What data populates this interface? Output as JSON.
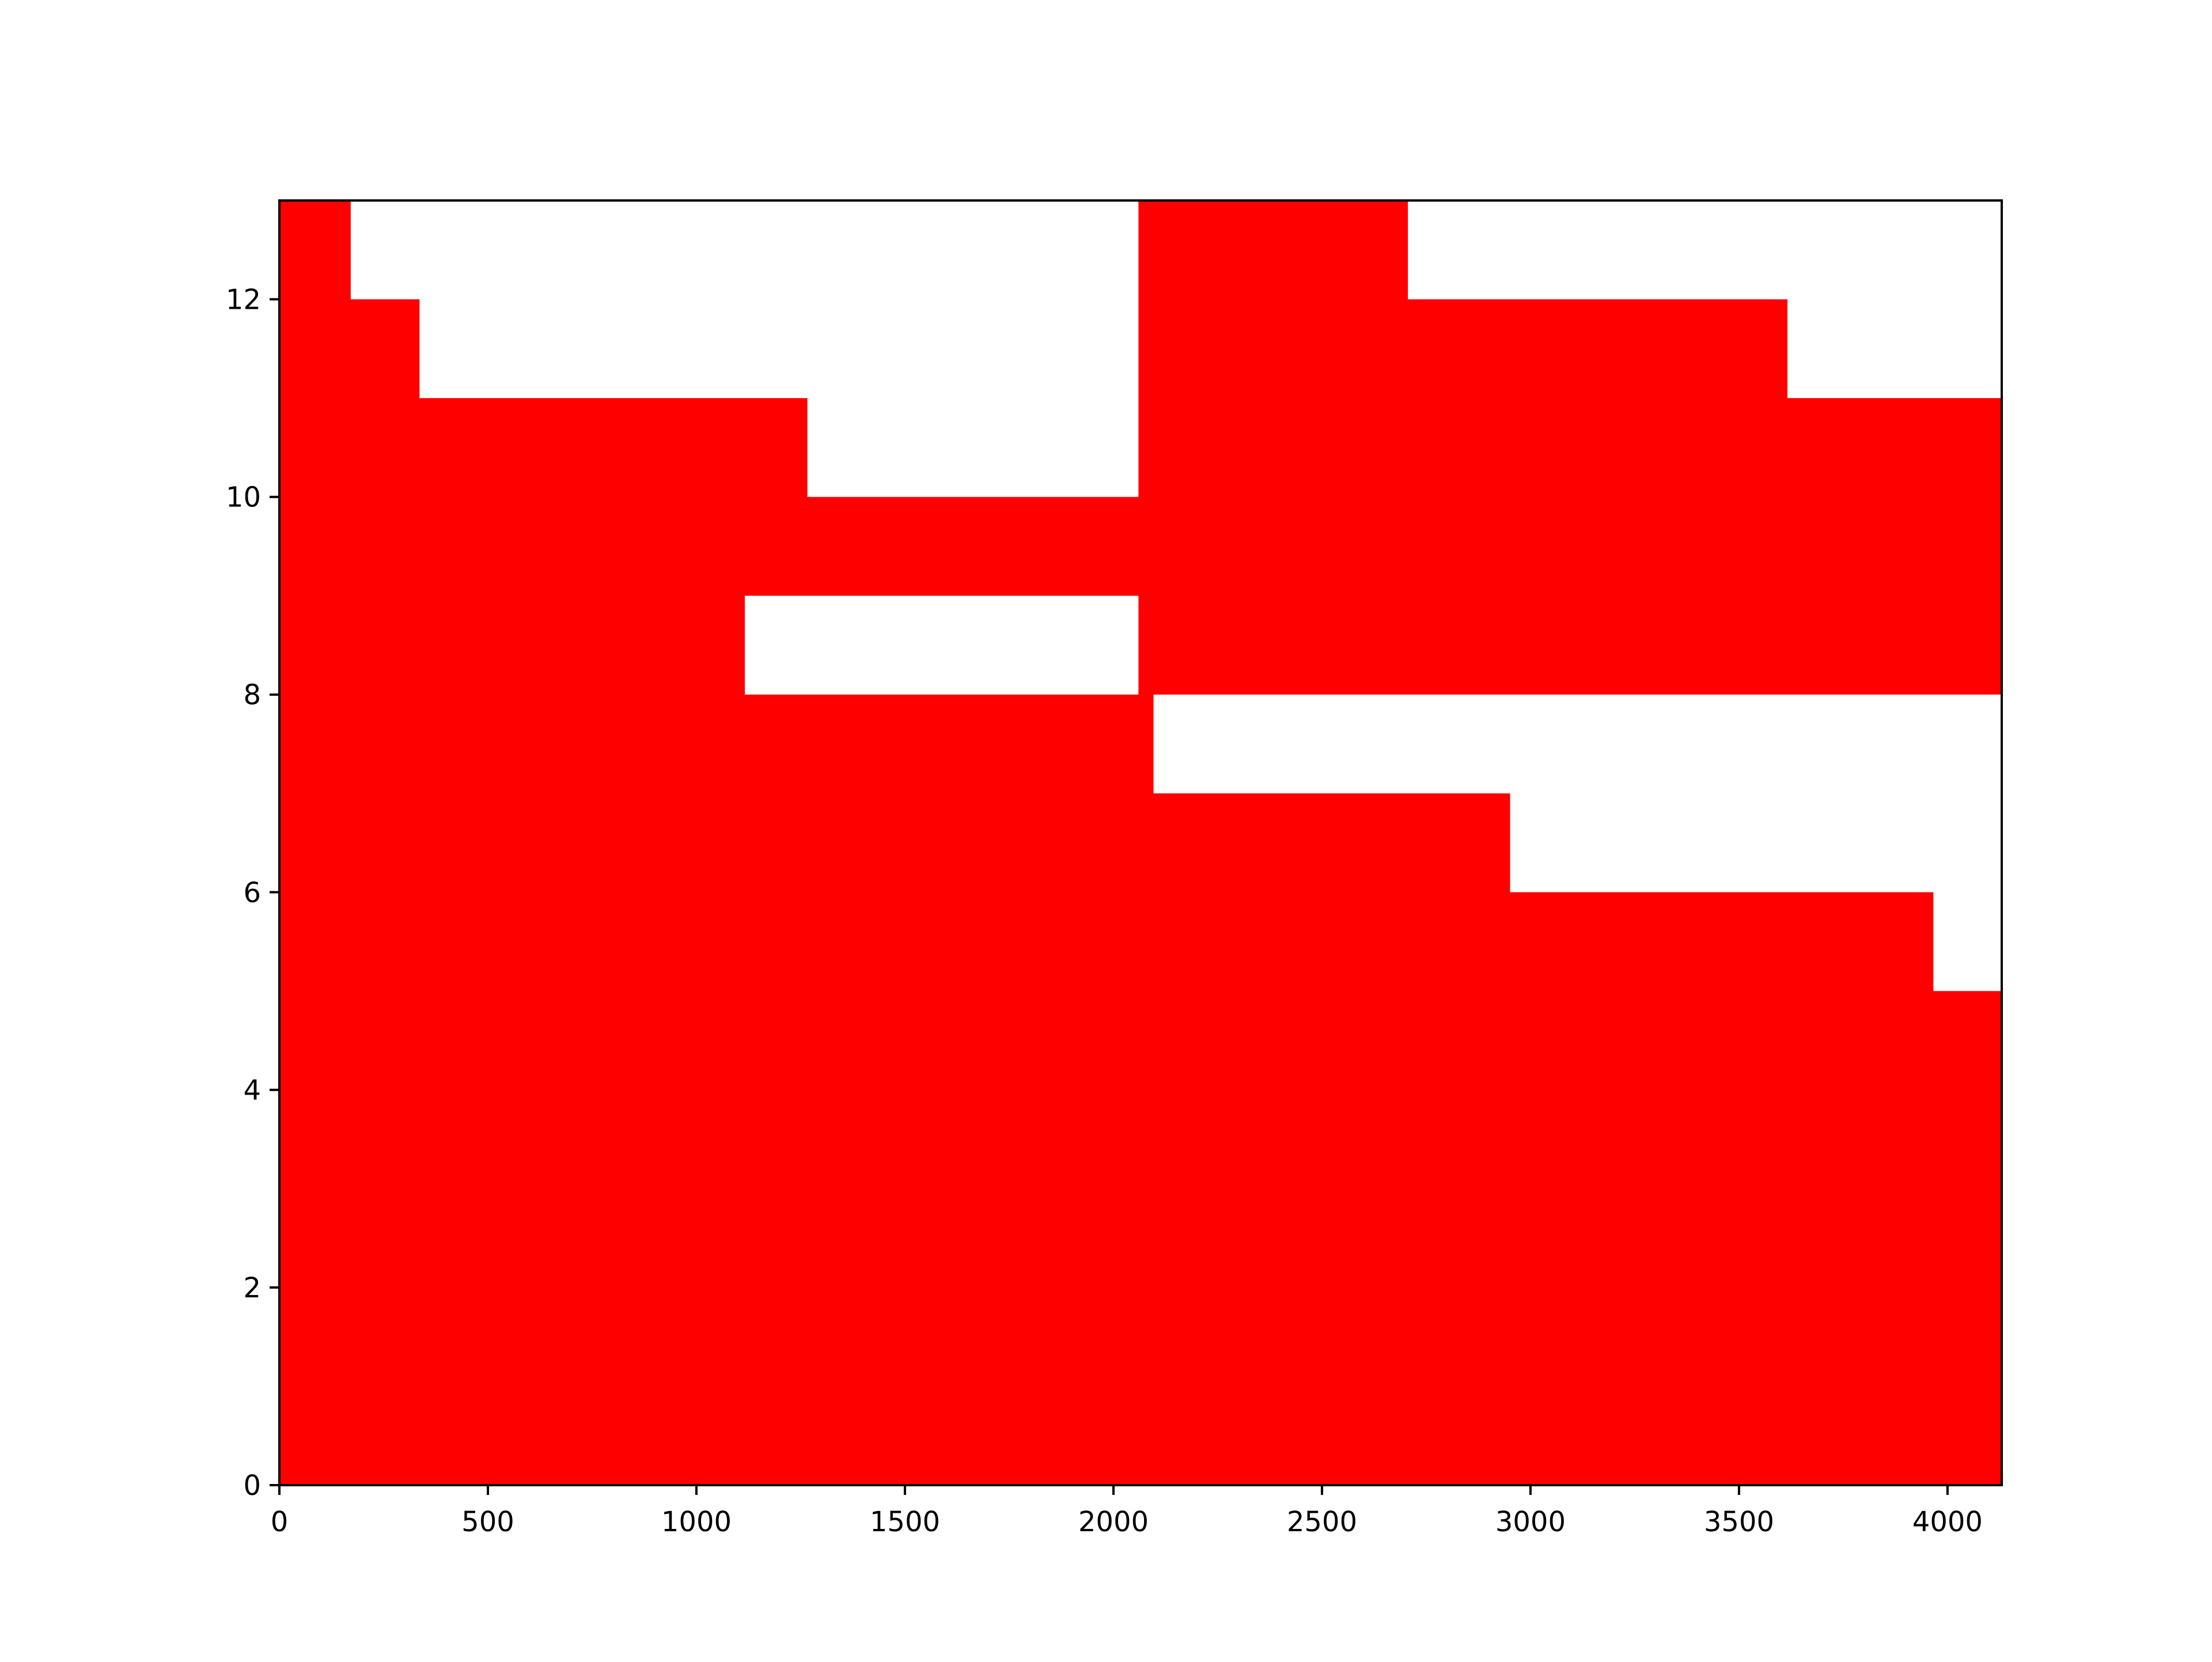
{
  "chart_data": {
    "type": "area",
    "title": "",
    "xlabel": "",
    "ylabel": "",
    "xlim": [
      0,
      4130
    ],
    "ylim": [
      0,
      13
    ],
    "grid": false,
    "fill_color": "#ff0000",
    "background_color": "#ffffff",
    "axis_color": "#000000",
    "x_ticks": [
      {
        "value": 0,
        "label": "0"
      },
      {
        "value": 500,
        "label": "500"
      },
      {
        "value": 1000,
        "label": "1000"
      },
      {
        "value": 1500,
        "label": "1500"
      },
      {
        "value": 2000,
        "label": "2000"
      },
      {
        "value": 2500,
        "label": "2500"
      },
      {
        "value": 3000,
        "label": "3000"
      },
      {
        "value": 3500,
        "label": "3500"
      },
      {
        "value": 4000,
        "label": "4000"
      }
    ],
    "y_ticks": [
      {
        "value": 0,
        "label": "0"
      },
      {
        "value": 2,
        "label": "2"
      },
      {
        "value": 4,
        "label": "4"
      },
      {
        "value": 6,
        "label": "6"
      },
      {
        "value": 8,
        "label": "8"
      },
      {
        "value": 10,
        "label": "10"
      },
      {
        "value": 12,
        "label": "12"
      }
    ],
    "regions": [
      {
        "x_start": 0,
        "x_end": 170,
        "y_min": 0,
        "y_max": 13
      },
      {
        "x_start": 170,
        "x_end": 335,
        "y_min": 0,
        "y_max": 12
      },
      {
        "x_start": 335,
        "x_end": 1115,
        "y_min": 0,
        "y_max": 11
      },
      {
        "x_start": 1115,
        "x_end": 1265,
        "y_min": 0,
        "y_max": 8
      },
      {
        "x_start": 1115,
        "x_end": 1265,
        "y_min": 9,
        "y_max": 11
      },
      {
        "x_start": 1265,
        "x_end": 2060,
        "y_min": 0,
        "y_max": 8
      },
      {
        "x_start": 1265,
        "x_end": 2060,
        "y_min": 9,
        "y_max": 10
      },
      {
        "x_start": 2060,
        "x_end": 2095,
        "y_min": 0,
        "y_max": 13
      },
      {
        "x_start": 2095,
        "x_end": 2705,
        "y_min": 0,
        "y_max": 7
      },
      {
        "x_start": 2095,
        "x_end": 2705,
        "y_min": 8,
        "y_max": 13
      },
      {
        "x_start": 2705,
        "x_end": 2950,
        "y_min": 0,
        "y_max": 7
      },
      {
        "x_start": 2705,
        "x_end": 2950,
        "y_min": 8,
        "y_max": 12
      },
      {
        "x_start": 2950,
        "x_end": 3615,
        "y_min": 0,
        "y_max": 6
      },
      {
        "x_start": 2950,
        "x_end": 3615,
        "y_min": 8,
        "y_max": 12
      },
      {
        "x_start": 3615,
        "x_end": 3965,
        "y_min": 0,
        "y_max": 6
      },
      {
        "x_start": 3615,
        "x_end": 3965,
        "y_min": 8,
        "y_max": 11
      },
      {
        "x_start": 3965,
        "x_end": 4130,
        "y_min": 0,
        "y_max": 5
      },
      {
        "x_start": 3965,
        "x_end": 4130,
        "y_min": 8,
        "y_max": 11
      }
    ]
  }
}
